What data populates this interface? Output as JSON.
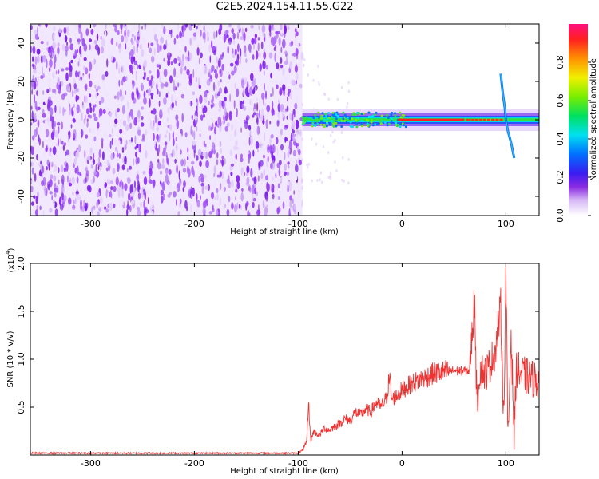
{
  "title": "C2E5.2024.154.11.55.G22",
  "colors": {
    "snr_line": "#ee3333",
    "spectrogram_noise": "#7a1fe6",
    "spectrogram_signal": "#ff2020"
  },
  "chart_data": [
    {
      "type": "heatmap",
      "xlabel": "Height of straight line (km)",
      "ylabel": "Frequency (Hz)",
      "xlim": [
        -358,
        132
      ],
      "ylim": [
        -50,
        50
      ],
      "xticks": [
        -300,
        -200,
        -100,
        0,
        100
      ],
      "yticks": [
        -40,
        -20,
        0,
        20,
        40
      ],
      "xtick_labels": [
        "-300",
        "-200",
        "-100",
        "0",
        "100"
      ],
      "ytick_labels": [
        "-40",
        "-20",
        "0",
        "20",
        "40"
      ],
      "noise_region_x": [
        -358,
        -96
      ],
      "signal_frequency_hz": 0,
      "colorbar": {
        "label": "Normalized spectral amplitude",
        "range": [
          0.0,
          1.0
        ],
        "ticks": [
          0.0,
          0.2,
          0.4,
          0.6,
          0.8
        ],
        "tick_labels": [
          "0.0",
          "0.2",
          "0.4",
          "0.6",
          "0.8"
        ]
      }
    },
    {
      "type": "line",
      "xlabel": "Height of straight line (km)",
      "ylabel": "SNR (10 * v/v)",
      "y_multiplier": "(x10",
      "y_multiplier_exp": "4",
      "y_multiplier_close": ")",
      "xlim": [
        -358,
        132
      ],
      "ylim": [
        0,
        2.0
      ],
      "xticks": [
        -300,
        -200,
        -100,
        0,
        100
      ],
      "yticks": [
        0.5,
        1.0,
        1.5,
        2.0
      ],
      "xtick_labels": [
        "-300",
        "-200",
        "-100",
        "0",
        "100"
      ],
      "ytick_labels": [
        "0.5",
        "1.0",
        "1.5",
        "2.0"
      ],
      "series": [
        {
          "x": [
            -358,
            -300,
            -250,
            -200,
            -150,
            -100,
            -96,
            -92,
            -90,
            -88,
            -85,
            -80,
            -75,
            -70,
            -65,
            -60,
            -55,
            -50,
            -45,
            -40,
            -35,
            -30,
            -25,
            -20,
            -15,
            -12,
            -10,
            -5,
            0,
            10,
            20,
            30,
            40,
            50,
            60,
            65,
            70,
            72,
            75,
            80,
            85,
            90,
            95,
            98,
            100,
            102,
            105,
            108,
            110,
            115,
            120,
            125,
            132
          ],
          "y": [
            0.02,
            0.02,
            0.02,
            0.02,
            0.02,
            0.02,
            0.05,
            0.12,
            0.55,
            0.15,
            0.25,
            0.2,
            0.28,
            0.26,
            0.3,
            0.33,
            0.38,
            0.36,
            0.45,
            0.42,
            0.48,
            0.45,
            0.55,
            0.5,
            0.6,
            0.82,
            0.58,
            0.62,
            0.68,
            0.75,
            0.8,
            0.85,
            0.87,
            0.88,
            0.88,
            0.88,
            1.65,
            0.5,
            0.9,
            0.85,
            0.95,
            1.1,
            1.55,
            0.35,
            2.0,
            0.1,
            1.3,
            0.2,
            0.9,
            0.85,
            0.82,
            0.8,
            0.78
          ]
        }
      ]
    }
  ]
}
